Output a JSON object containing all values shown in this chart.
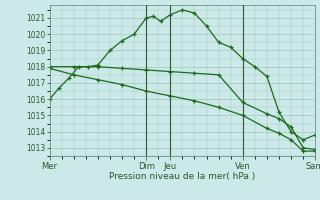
{
  "bg_color": "#cce8e8",
  "grid_color": "#99ccbb",
  "line_color": "#1a6b1a",
  "xlabel": "Pression niveau de la mer( hPa )",
  "ylim": [
    1012.5,
    1021.8
  ],
  "yticks": [
    1013,
    1014,
    1015,
    1016,
    1017,
    1018,
    1019,
    1020,
    1021
  ],
  "xtick_labels": [
    "Mer",
    "Dim",
    "Jeu",
    "Ven",
    "Sam"
  ],
  "xtick_positions": [
    0,
    4,
    5,
    8,
    11
  ],
  "vlines_x": [
    4.0,
    5.0,
    8.0
  ],
  "series1": {
    "x": [
      0,
      0.4,
      0.8,
      1.2,
      1.6,
      2.0,
      2.5,
      3.0,
      3.5,
      4.0,
      4.3,
      4.6,
      5.0,
      5.5,
      6.0,
      6.5,
      7.0,
      7.5,
      8.0,
      8.5,
      9.0,
      9.5,
      10.0,
      10.5,
      11.0
    ],
    "y": [
      1016.0,
      1016.7,
      1017.3,
      1018.0,
      1018.0,
      1018.1,
      1019.0,
      1019.6,
      1020.0,
      1021.0,
      1021.1,
      1020.8,
      1021.2,
      1021.5,
      1021.3,
      1020.5,
      1019.5,
      1019.2,
      1018.5,
      1018.0,
      1017.4,
      1015.2,
      1014.0,
      1013.5,
      1013.8
    ]
  },
  "series2": {
    "x": [
      0,
      1,
      2,
      3,
      4,
      5,
      6,
      7,
      8,
      9,
      9.5,
      10,
      10.5,
      11
    ],
    "y": [
      1018.0,
      1018.0,
      1018.0,
      1017.9,
      1017.8,
      1017.7,
      1017.6,
      1017.5,
      1015.8,
      1015.1,
      1014.8,
      1014.3,
      1013.0,
      1012.9
    ]
  },
  "series3": {
    "x": [
      0,
      1,
      2,
      3,
      4,
      5,
      6,
      7,
      8,
      9,
      9.5,
      10,
      10.5,
      11
    ],
    "y": [
      1017.9,
      1017.5,
      1017.2,
      1016.9,
      1016.5,
      1016.2,
      1015.9,
      1015.5,
      1015.0,
      1014.2,
      1013.9,
      1013.5,
      1012.8,
      1012.8
    ]
  }
}
